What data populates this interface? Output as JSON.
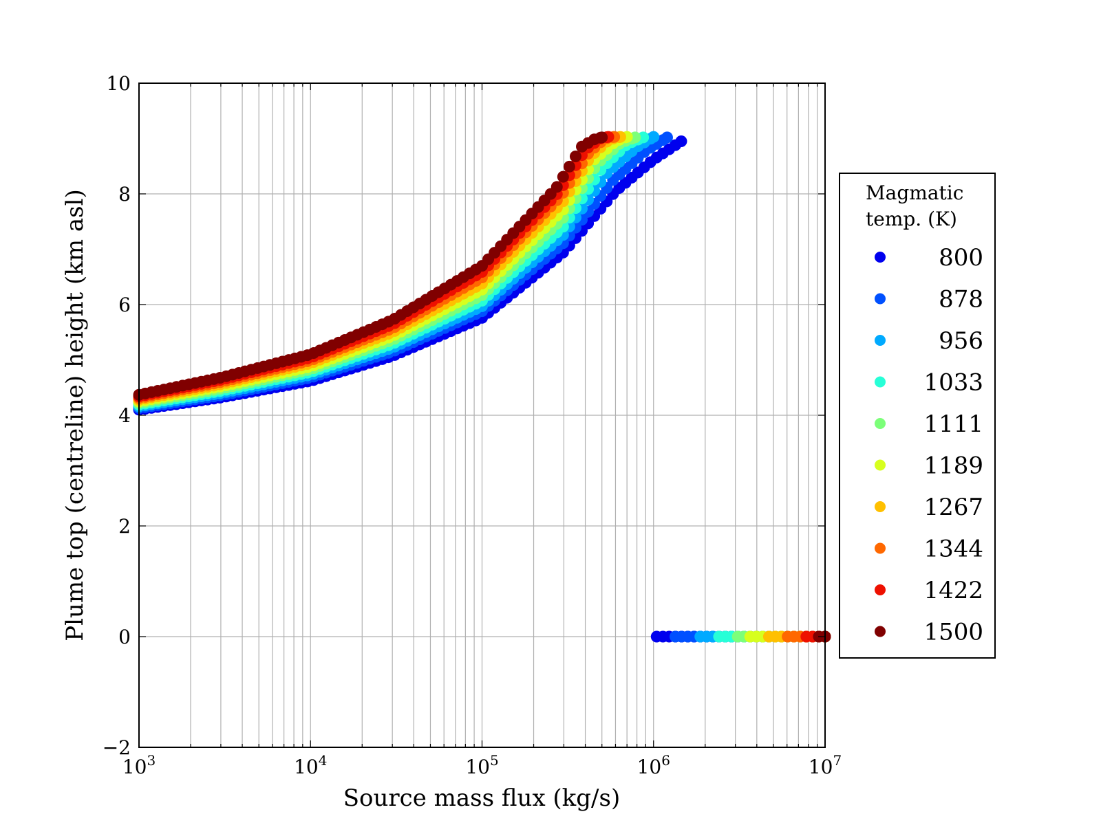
{
  "chart_data": {
    "type": "scatter",
    "xlabel": "Source mass flux (kg/s)",
    "ylabel": "Plume top (centreline) height (km asl)",
    "x_scale": "log",
    "xlim": [
      1000,
      10000000
    ],
    "ylim": [
      -2,
      10
    ],
    "y_ticks": [
      "−2",
      "0",
      "2",
      "4",
      "6",
      "8",
      "10"
    ],
    "x_ticks": [
      {
        "base": "10",
        "exp": "3"
      },
      {
        "base": "10",
        "exp": "4"
      },
      {
        "base": "10",
        "exp": "5"
      },
      {
        "base": "10",
        "exp": "6"
      },
      {
        "base": "10",
        "exp": "7"
      }
    ],
    "grid": true,
    "legend": {
      "title_lines": [
        "Magmatic",
        "temp. (K)"
      ],
      "placement": "outside-right"
    },
    "series": [
      {
        "name": "800",
        "color": "#0000ee",
        "points": [
          [
            1000,
            4.1
          ],
          [
            3000,
            4.32
          ],
          [
            10000,
            4.62
          ],
          [
            30000,
            5.07
          ],
          [
            100000,
            5.76
          ],
          [
            300000,
            6.95
          ],
          [
            600000,
            8.05
          ],
          [
            1000000,
            8.62
          ],
          [
            1450000,
            8.95
          ]
        ],
        "collapse_from": 1000000
      },
      {
        "name": "878",
        "color": "#0050ff",
        "points": [
          [
            1000,
            4.13
          ],
          [
            3000,
            4.36
          ],
          [
            10000,
            4.68
          ],
          [
            30000,
            5.15
          ],
          [
            100000,
            5.88
          ],
          [
            300000,
            7.12
          ],
          [
            580000,
            8.25
          ],
          [
            900000,
            8.78
          ],
          [
            1200000,
            9.02
          ]
        ],
        "collapse_from": 1300000
      },
      {
        "name": "956",
        "color": "#00aaff",
        "points": [
          [
            1000,
            4.16
          ],
          [
            3000,
            4.4
          ],
          [
            10000,
            4.73
          ],
          [
            30000,
            5.22
          ],
          [
            100000,
            5.97
          ],
          [
            300000,
            7.27
          ],
          [
            540000,
            8.4
          ],
          [
            800000,
            8.85
          ],
          [
            1000000,
            9.03
          ]
        ],
        "collapse_from": 1800000
      },
      {
        "name": "1033",
        "color": "#27ffd7",
        "points": [
          [
            1000,
            4.19
          ],
          [
            3000,
            4.44
          ],
          [
            10000,
            4.78
          ],
          [
            30000,
            5.29
          ],
          [
            100000,
            6.07
          ],
          [
            300000,
            7.42
          ],
          [
            500000,
            8.47
          ],
          [
            700000,
            8.9
          ],
          [
            870000,
            9.02
          ]
        ],
        "collapse_from": 2300000
      },
      {
        "name": "1111",
        "color": "#7cff79",
        "points": [
          [
            1000,
            4.22
          ],
          [
            3000,
            4.48
          ],
          [
            10000,
            4.83
          ],
          [
            30000,
            5.36
          ],
          [
            100000,
            6.17
          ],
          [
            300000,
            7.58
          ],
          [
            470000,
            8.55
          ],
          [
            640000,
            8.92
          ],
          [
            780000,
            9.02
          ]
        ],
        "collapse_from": 2900000
      },
      {
        "name": "1189",
        "color": "#d7ff1e",
        "points": [
          [
            1000,
            4.25
          ],
          [
            3000,
            4.52
          ],
          [
            10000,
            4.88
          ],
          [
            30000,
            5.43
          ],
          [
            100000,
            6.27
          ],
          [
            300000,
            7.73
          ],
          [
            450000,
            8.62
          ],
          [
            600000,
            8.95
          ],
          [
            700000,
            9.03
          ]
        ],
        "collapse_from": 3600000
      },
      {
        "name": "1267",
        "color": "#ffc000",
        "points": [
          [
            1000,
            4.28
          ],
          [
            3000,
            4.56
          ],
          [
            10000,
            4.94
          ],
          [
            30000,
            5.5
          ],
          [
            100000,
            6.38
          ],
          [
            300000,
            7.88
          ],
          [
            430000,
            8.68
          ],
          [
            550000,
            8.98
          ],
          [
            640000,
            9.03
          ]
        ],
        "collapse_from": 4600000
      },
      {
        "name": "1344",
        "color": "#ff6800",
        "points": [
          [
            1000,
            4.31
          ],
          [
            3000,
            4.6
          ],
          [
            10000,
            4.99
          ],
          [
            30000,
            5.57
          ],
          [
            100000,
            6.49
          ],
          [
            290000,
            7.97
          ],
          [
            420000,
            8.75
          ],
          [
            520000,
            9.0
          ],
          [
            590000,
            9.03
          ]
        ],
        "collapse_from": 5700000
      },
      {
        "name": "1422",
        "color": "#ee1000",
        "points": [
          [
            1000,
            4.34
          ],
          [
            3000,
            4.64
          ],
          [
            10000,
            5.04
          ],
          [
            30000,
            5.64
          ],
          [
            100000,
            6.59
          ],
          [
            280000,
            8.03
          ],
          [
            400000,
            8.8
          ],
          [
            490000,
            9.0
          ],
          [
            545000,
            9.03
          ]
        ],
        "collapse_from": 7200000
      },
      {
        "name": "1500",
        "color": "#800000",
        "points": [
          [
            1000,
            4.37
          ],
          [
            3000,
            4.68
          ],
          [
            10000,
            5.1
          ],
          [
            30000,
            5.72
          ],
          [
            100000,
            6.7
          ],
          [
            270000,
            8.1
          ],
          [
            380000,
            8.85
          ],
          [
            460000,
            9.0
          ],
          [
            500000,
            9.02
          ]
        ],
        "collapse_from": 8500000
      }
    ]
  }
}
